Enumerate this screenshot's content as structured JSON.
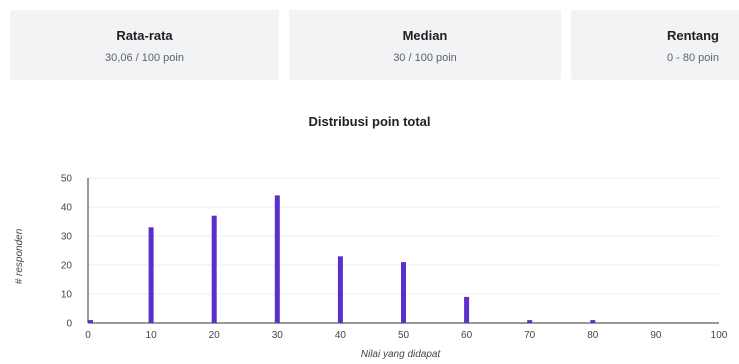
{
  "stats": [
    {
      "label": "Rata-rata",
      "value": "30,06 / 100 poin"
    },
    {
      "label": "Median",
      "value": "30 / 100 poin"
    },
    {
      "label": "Rentang",
      "value": "0 - 80 poin"
    }
  ],
  "chart_data": {
    "type": "bar",
    "title": "Distribusi poin total",
    "xlabel": "Nilai yang didapat",
    "ylabel": "# responden",
    "x": [
      0,
      10,
      20,
      30,
      40,
      50,
      60,
      70,
      80
    ],
    "values": [
      1,
      33,
      37,
      44,
      23,
      21,
      9,
      1,
      1
    ],
    "xlim": [
      0,
      100
    ],
    "ylim": [
      0,
      50
    ],
    "xticks": [
      0,
      10,
      20,
      30,
      40,
      50,
      60,
      70,
      80,
      90,
      100
    ],
    "yticks": [
      0,
      10,
      20,
      30,
      40,
      50
    ],
    "bar_color": "#5b2fc9",
    "grid": true
  }
}
